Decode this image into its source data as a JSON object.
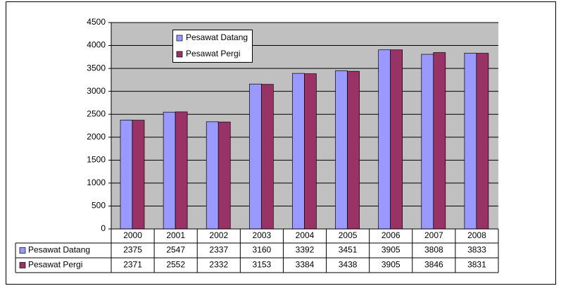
{
  "chart_data": {
    "type": "bar",
    "categories": [
      "2000",
      "2001",
      "2002",
      "2003",
      "2004",
      "2005",
      "2006",
      "2007",
      "2008"
    ],
    "series": [
      {
        "name": "Pesawat Datang",
        "color": "#9999ff",
        "values": [
          2375,
          2547,
          2337,
          3160,
          3392,
          3451,
          3905,
          3808,
          3833
        ]
      },
      {
        "name": "Pesawat Pergi",
        "color": "#993366",
        "values": [
          2371,
          2552,
          2332,
          3153,
          3384,
          3438,
          3905,
          3846,
          3831
        ]
      }
    ],
    "ylim": [
      0,
      4500
    ],
    "yticks": [
      0,
      500,
      1000,
      1500,
      2000,
      2500,
      3000,
      3500,
      4000,
      4500
    ],
    "grid": true,
    "data_table": true
  }
}
